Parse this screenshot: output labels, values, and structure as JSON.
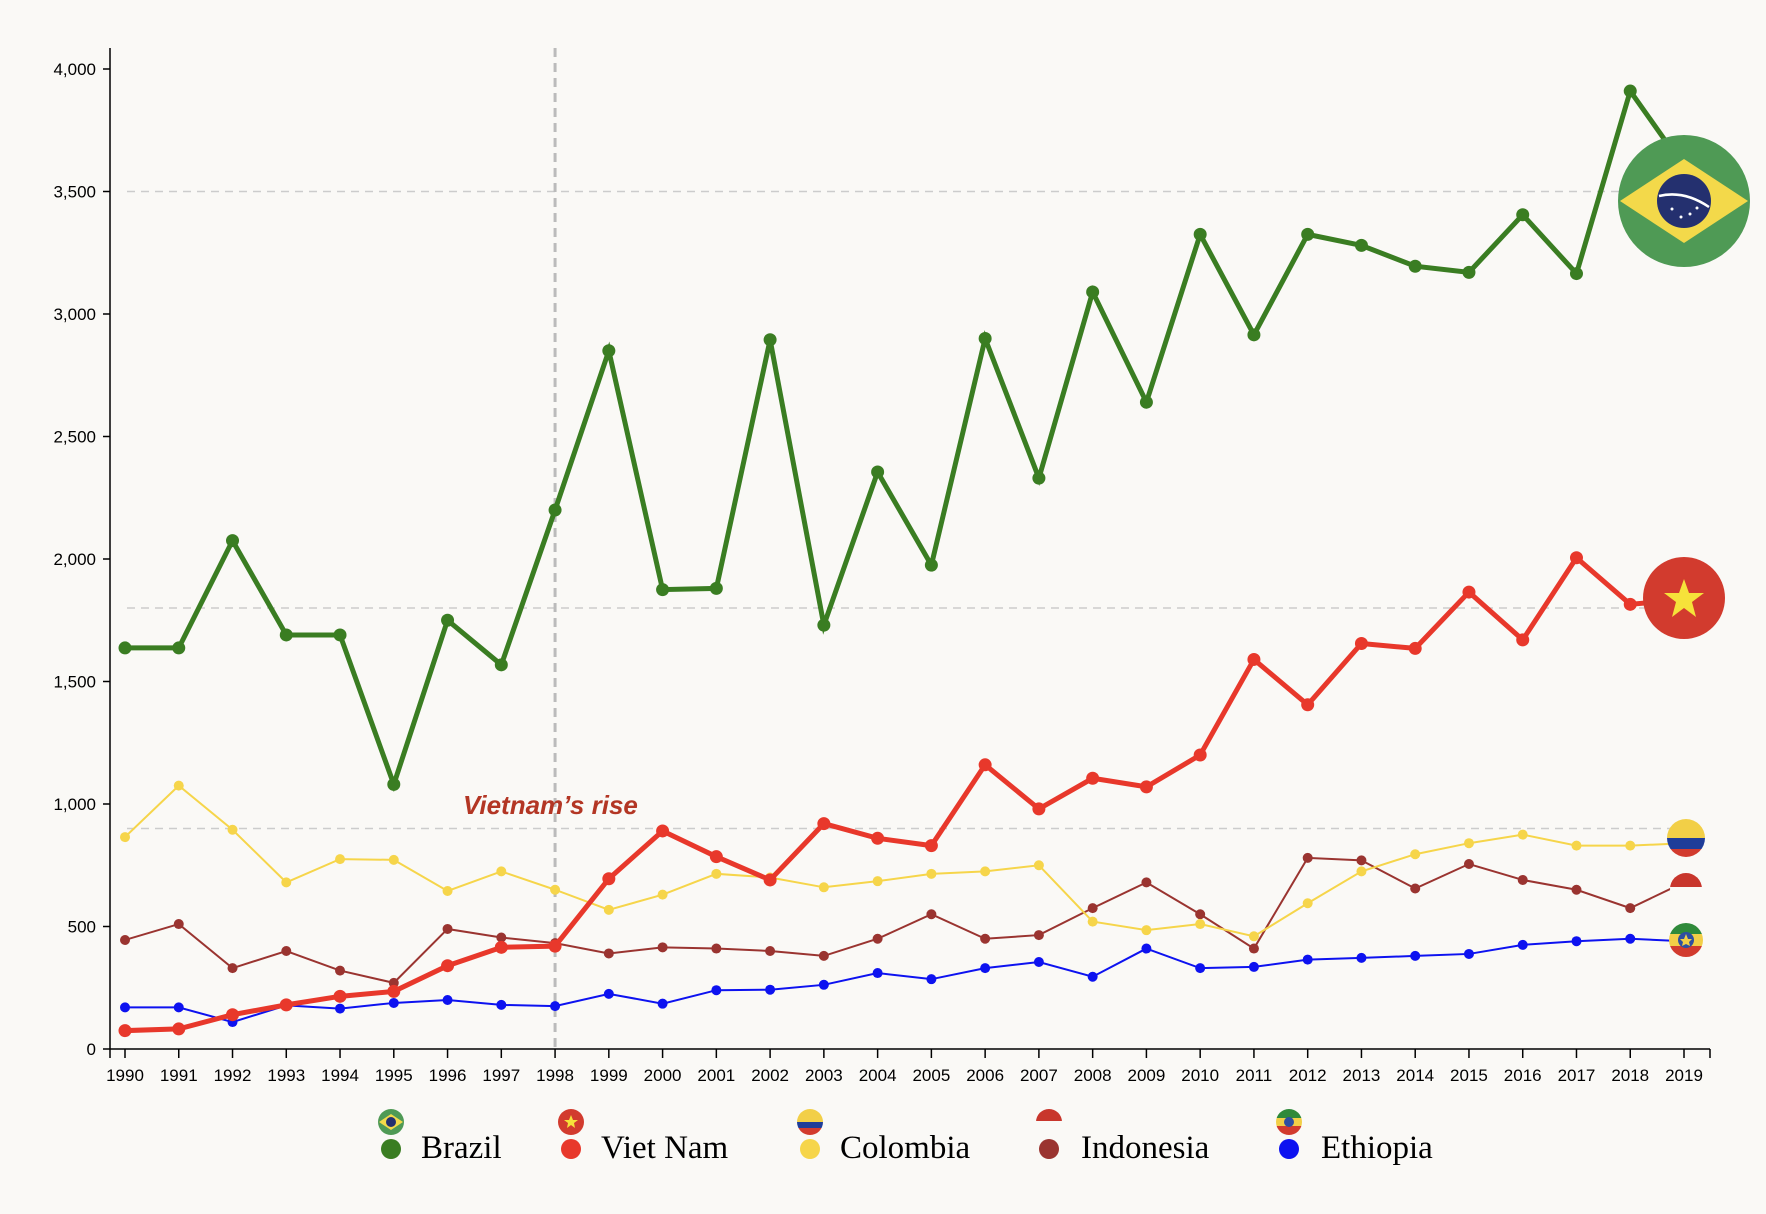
{
  "colors": {
    "brazil": "#3a7d22",
    "viet_nam": "#e8382b",
    "colombia": "#f6d54a",
    "indonesia": "#9a3430",
    "ethiopia": "#0d12f0",
    "grid": "#cccccc",
    "annotation": "#b33624",
    "background": "#faf9f6"
  },
  "chart_data": {
    "type": "line",
    "x": [
      1990,
      1991,
      1992,
      1993,
      1994,
      1995,
      1996,
      1997,
      1998,
      1999,
      2000,
      2001,
      2002,
      2003,
      2004,
      2005,
      2006,
      2007,
      2008,
      2009,
      2010,
      2011,
      2012,
      2013,
      2014,
      2015,
      2016,
      2017,
      2018,
      2019
    ],
    "ylim": [
      0,
      4000
    ],
    "yticks": [
      0,
      500,
      1000,
      1500,
      2000,
      2500,
      3000,
      3500,
      4000
    ],
    "ytick_labels": [
      "0",
      "500",
      "1,000",
      "1,500",
      "2,000",
      "2,500",
      "3,000",
      "3,500",
      "4,000"
    ],
    "xtick_labels": [
      "1990",
      "1991",
      "1992",
      "1993",
      "1994",
      "1995",
      "1996",
      "1997",
      "1998",
      "1999",
      "2000",
      "2001",
      "2002",
      "2003",
      "2004",
      "2005",
      "2006",
      "2007",
      "2008",
      "2009",
      "2010",
      "2011",
      "2012",
      "2013",
      "2014",
      "2015",
      "2016",
      "2017",
      "2018",
      "2019"
    ],
    "horizontal_reference_lines": [
      900,
      1800,
      3500
    ],
    "vertical_reference_line": 1998,
    "annotation": "Vietnam’s rise",
    "legend_position": "bottom",
    "series": [
      {
        "name": "Brazil",
        "key": "brazil",
        "width": 5,
        "r": 6.5,
        "values": [
          1637,
          1637,
          2075,
          1690,
          1690,
          1080,
          1750,
          1568,
          2200,
          2850,
          1875,
          1880,
          2895,
          1730,
          2355,
          1975,
          2900,
          2330,
          3090,
          2640,
          3325,
          2915,
          3325,
          3280,
          3195,
          3170,
          3405,
          3165,
          3910,
          3600
        ]
      },
      {
        "name": "Viet Nam",
        "key": "viet_nam",
        "width": 5,
        "r": 6.5,
        "values": [
          75,
          82,
          140,
          180,
          215,
          235,
          340,
          415,
          420,
          695,
          890,
          785,
          690,
          920,
          860,
          830,
          1160,
          980,
          1105,
          1070,
          1200,
          1590,
          1405,
          1655,
          1635,
          1865,
          1670,
          2005,
          1815,
          1835
        ]
      },
      {
        "name": "Colombia",
        "key": "colombia",
        "width": 2,
        "r": 5,
        "values": [
          865,
          1075,
          895,
          680,
          775,
          772,
          645,
          725,
          650,
          568,
          630,
          715,
          700,
          660,
          685,
          715,
          725,
          750,
          520,
          485,
          510,
          460,
          595,
          725,
          795,
          840,
          875,
          830,
          830,
          840
        ]
      },
      {
        "name": "Indonesia",
        "key": "indonesia",
        "width": 2,
        "r": 5,
        "values": [
          445,
          510,
          330,
          400,
          320,
          270,
          490,
          455,
          432,
          390,
          415,
          410,
          400,
          380,
          450,
          550,
          450,
          465,
          575,
          680,
          550,
          410,
          780,
          770,
          655,
          755,
          690,
          650,
          575,
          680
        ]
      },
      {
        "name": "Ethiopia",
        "key": "ethiopia",
        "width": 2,
        "r": 5,
        "values": [
          170,
          170,
          110,
          178,
          165,
          188,
          200,
          180,
          175,
          225,
          185,
          240,
          242,
          262,
          310,
          285,
          330,
          355,
          295,
          410,
          330,
          335,
          365,
          372,
          380,
          388,
          425,
          440,
          450,
          440
        ]
      }
    ]
  }
}
